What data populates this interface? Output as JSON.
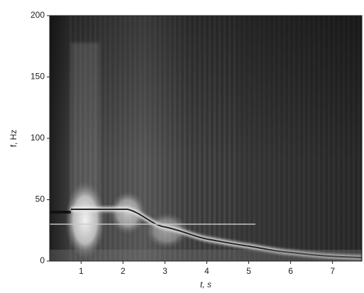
{
  "chart_data": {
    "type": "spectrogram",
    "xlabel": "t, s",
    "ylabel": "f, Hz",
    "xlim": [
      0.25,
      7.7
    ],
    "xticks": [
      1,
      2,
      3,
      4,
      5,
      6,
      7
    ],
    "ylim": [
      0,
      200
    ],
    "yticks": [
      0,
      50,
      100,
      150,
      200
    ]
  }
}
